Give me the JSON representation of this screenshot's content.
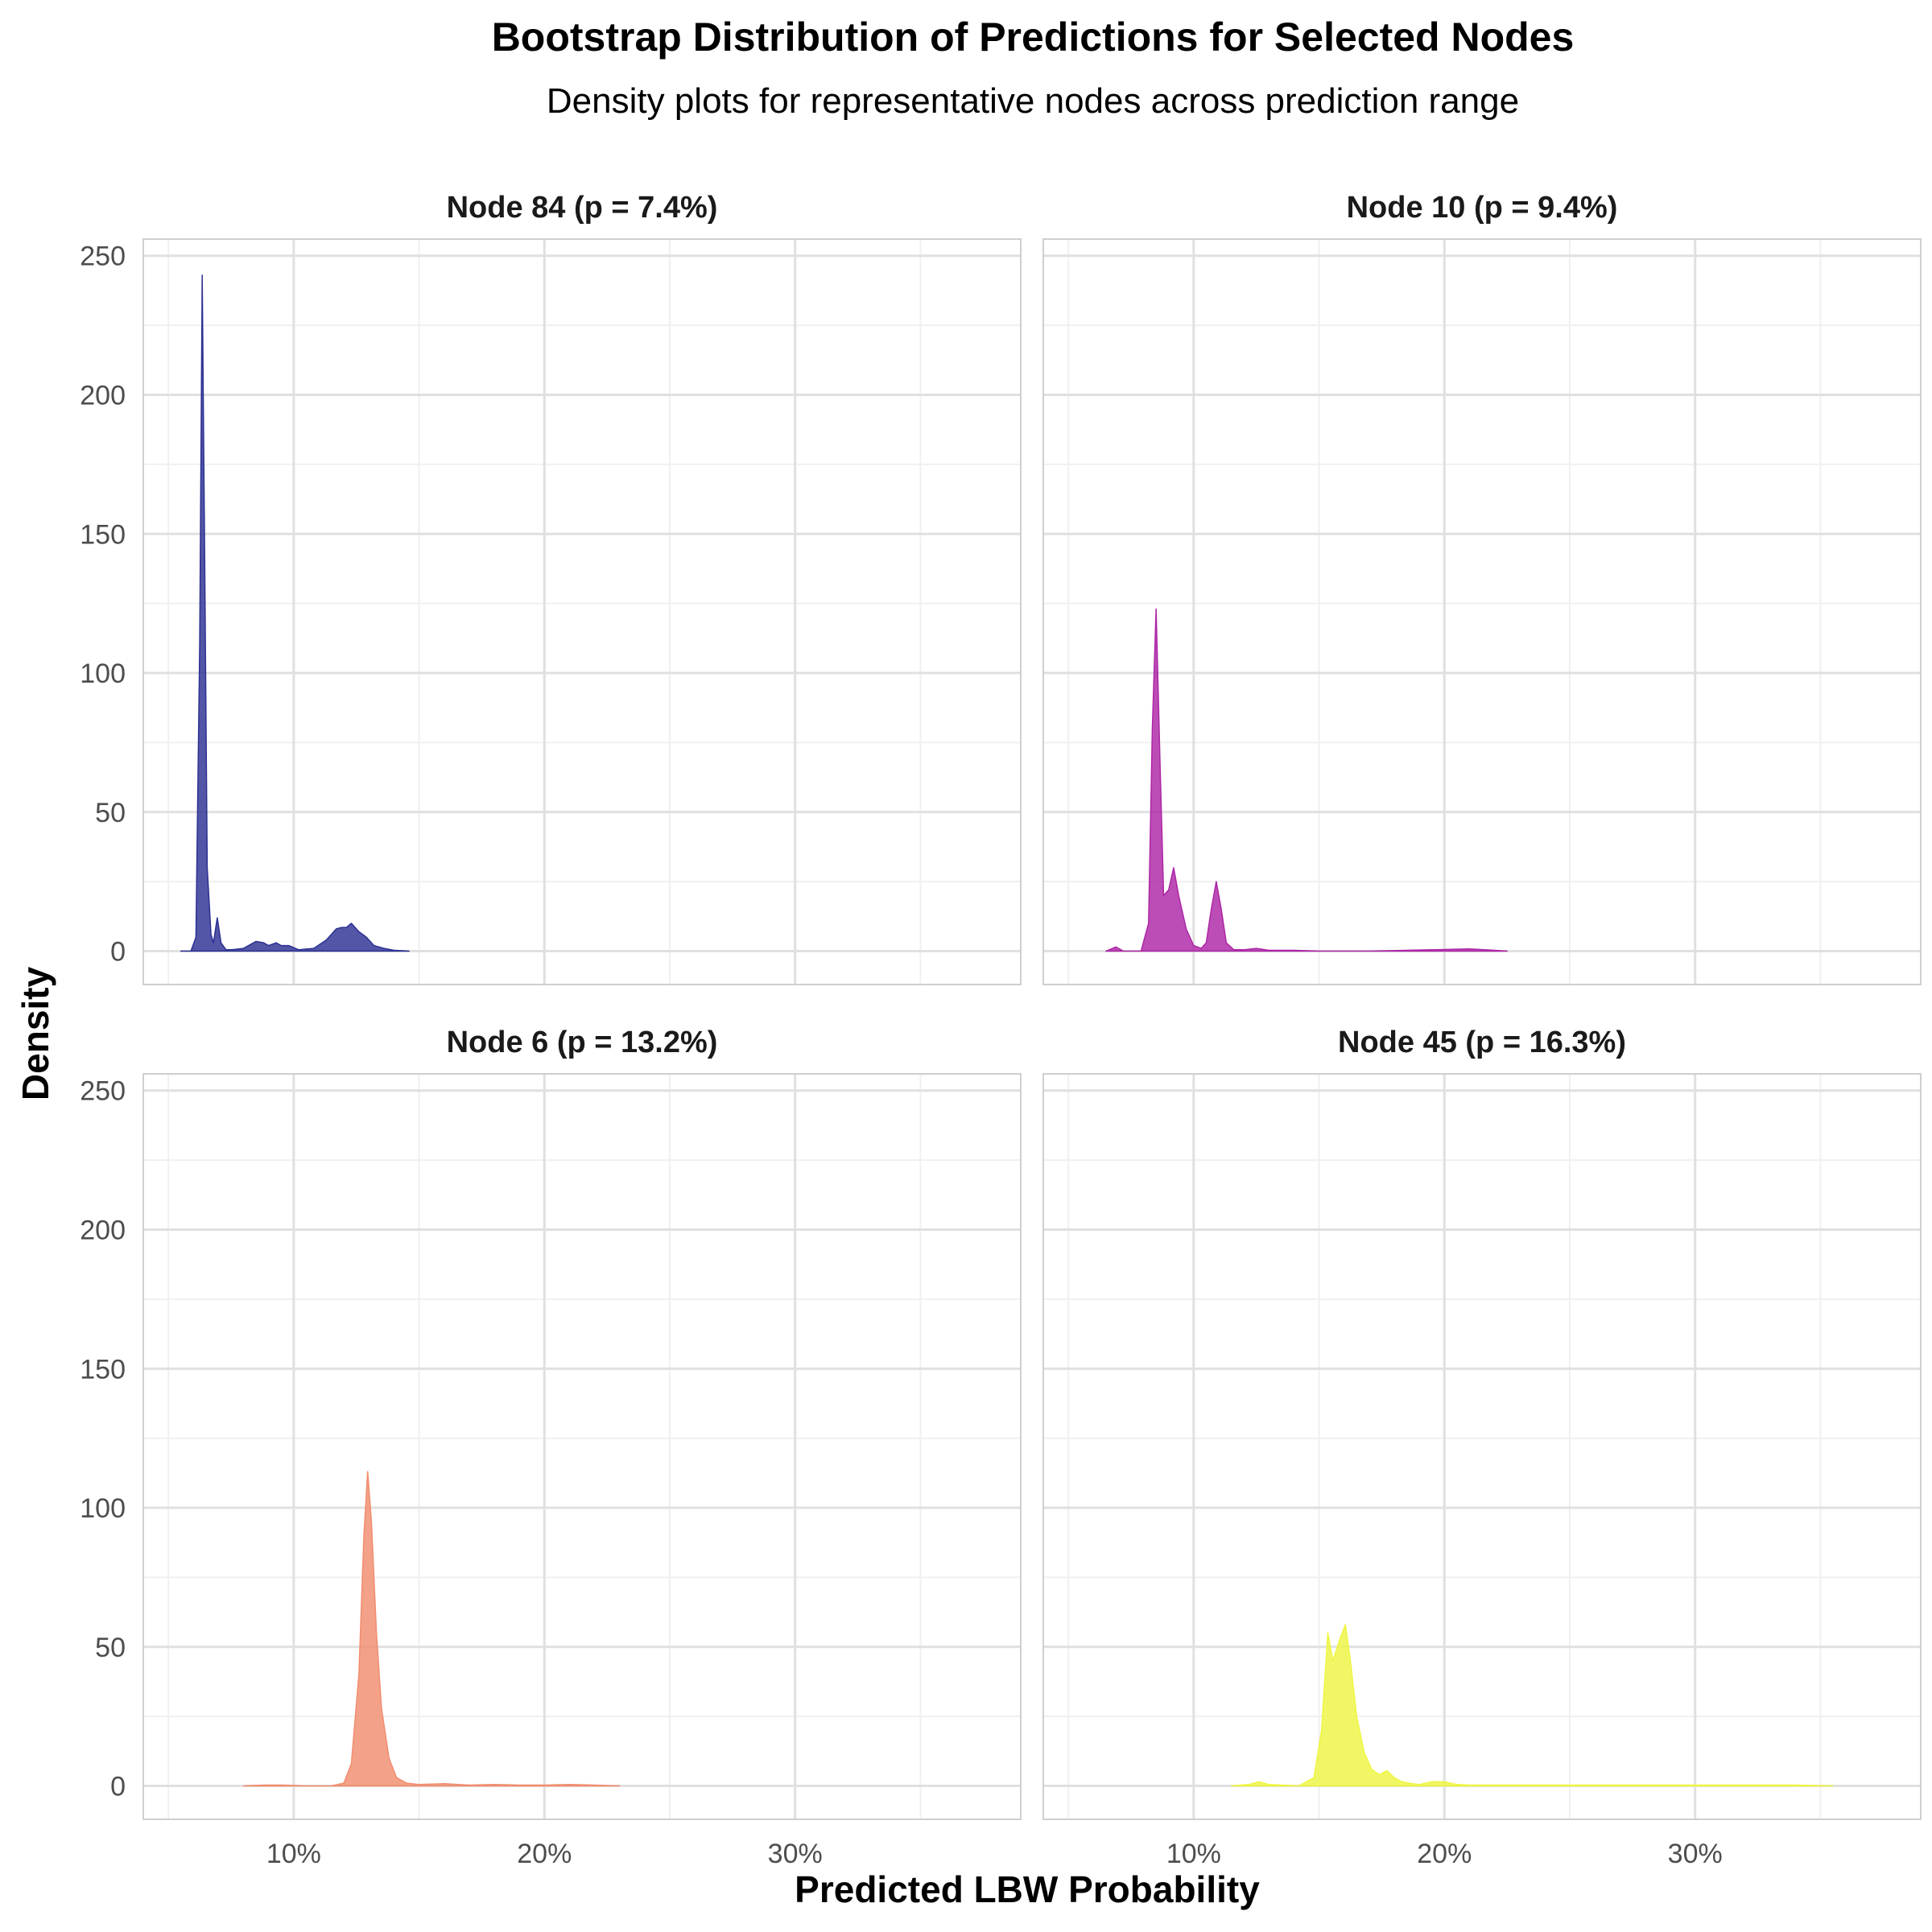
{
  "chart_data": {
    "type": "area",
    "title": "Bootstrap Distribution of Predictions for Selected Nodes",
    "subtitle": "Density plots for representative nodes across prediction range",
    "xlabel": "Predicted LBW Probability",
    "ylabel": "Density",
    "x_unit": "percent",
    "xlim": [
      4,
      39
    ],
    "ylim": [
      -12,
      256
    ],
    "x_ticks": [
      10,
      20,
      30
    ],
    "x_tick_labels": [
      "10%",
      "20%",
      "30%"
    ],
    "y_ticks": [
      0,
      50,
      100,
      150,
      200,
      250
    ],
    "y_tick_labels": [
      "0",
      "50",
      "100",
      "150",
      "200",
      "250"
    ],
    "grid": true,
    "layout": "2x2 facets, shared axes",
    "panels": [
      {
        "label": "Node 84 (p = 7.4%)",
        "color": "#2d3192",
        "x": [
          5.5,
          5.9,
          6.1,
          6.25,
          6.35,
          6.45,
          6.55,
          6.7,
          6.8,
          6.95,
          7.1,
          7.3,
          7.5,
          8.0,
          8.5,
          8.8,
          9.0,
          9.3,
          9.5,
          9.8,
          10.2,
          10.8,
          11.3,
          11.7,
          11.9,
          12.1,
          12.3,
          12.6,
          12.9,
          13.2,
          13.6,
          14.0,
          14.6
        ],
        "y": [
          0,
          0,
          5,
          110,
          243,
          140,
          30,
          6,
          3,
          12,
          3,
          0.5,
          0.5,
          1,
          3.5,
          3,
          2,
          3,
          2,
          2,
          0.5,
          1,
          4,
          8,
          8.5,
          8.5,
          10,
          7,
          5,
          2,
          1,
          0.3,
          0
        ]
      },
      {
        "label": "Node 10 (p = 9.4%)",
        "color": "#ad26a6",
        "x": [
          6.5,
          6.9,
          7.2,
          7.6,
          7.9,
          8.2,
          8.35,
          8.5,
          8.65,
          8.8,
          9.0,
          9.2,
          9.4,
          9.7,
          10.0,
          10.3,
          10.5,
          10.7,
          10.9,
          11.1,
          11.3,
          11.6,
          12.0,
          12.5,
          13.0,
          14.0,
          15.0,
          17.0,
          18.5,
          20.0,
          21.0,
          22.0,
          22.5
        ],
        "y": [
          0,
          1.5,
          0,
          0,
          0,
          10,
          80,
          123,
          70,
          20,
          22,
          30,
          20,
          8,
          2,
          1,
          3,
          15,
          25,
          15,
          3,
          0.5,
          0.5,
          1,
          0.3,
          0.3,
          0,
          0,
          0.3,
          0.6,
          0.8,
          0.3,
          0
        ]
      },
      {
        "label": "Node 6 (p = 13.2%)",
        "color": "#f08d6f",
        "x": [
          8.0,
          8.8,
          9.6,
          10.5,
          11.5,
          12.0,
          12.3,
          12.6,
          12.8,
          12.95,
          13.1,
          13.3,
          13.5,
          13.8,
          14.1,
          14.5,
          15.0,
          16.0,
          17.0,
          18.0,
          19.0,
          20.0,
          21.0,
          22.0,
          23.0
        ],
        "y": [
          0,
          0.3,
          0.3,
          0,
          0,
          1,
          8,
          40,
          90,
          113,
          95,
          55,
          28,
          10,
          3,
          1,
          0.5,
          0.8,
          0.3,
          0.5,
          0.3,
          0.3,
          0.5,
          0.3,
          0
        ]
      },
      {
        "label": "Node 45 (p = 16.3%)",
        "color": "#eef542",
        "x": [
          11.5,
          12.2,
          12.6,
          13.0,
          14.2,
          14.8,
          15.1,
          15.35,
          15.55,
          15.8,
          16.05,
          16.25,
          16.5,
          16.8,
          17.1,
          17.4,
          17.7,
          18.0,
          18.3,
          18.6,
          19.0,
          19.5,
          20.0,
          20.5,
          21.0,
          23.0,
          26.0,
          30.0,
          34.0,
          35.5
        ],
        "y": [
          0,
          0.5,
          1.5,
          0.5,
          0,
          3,
          20,
          55,
          45,
          52,
          58,
          45,
          25,
          12,
          6,
          4,
          5.5,
          3,
          1.5,
          1,
          0.5,
          1.5,
          1.5,
          0.5,
          0.3,
          0.3,
          0.3,
          0.3,
          0.3,
          0
        ]
      }
    ]
  }
}
